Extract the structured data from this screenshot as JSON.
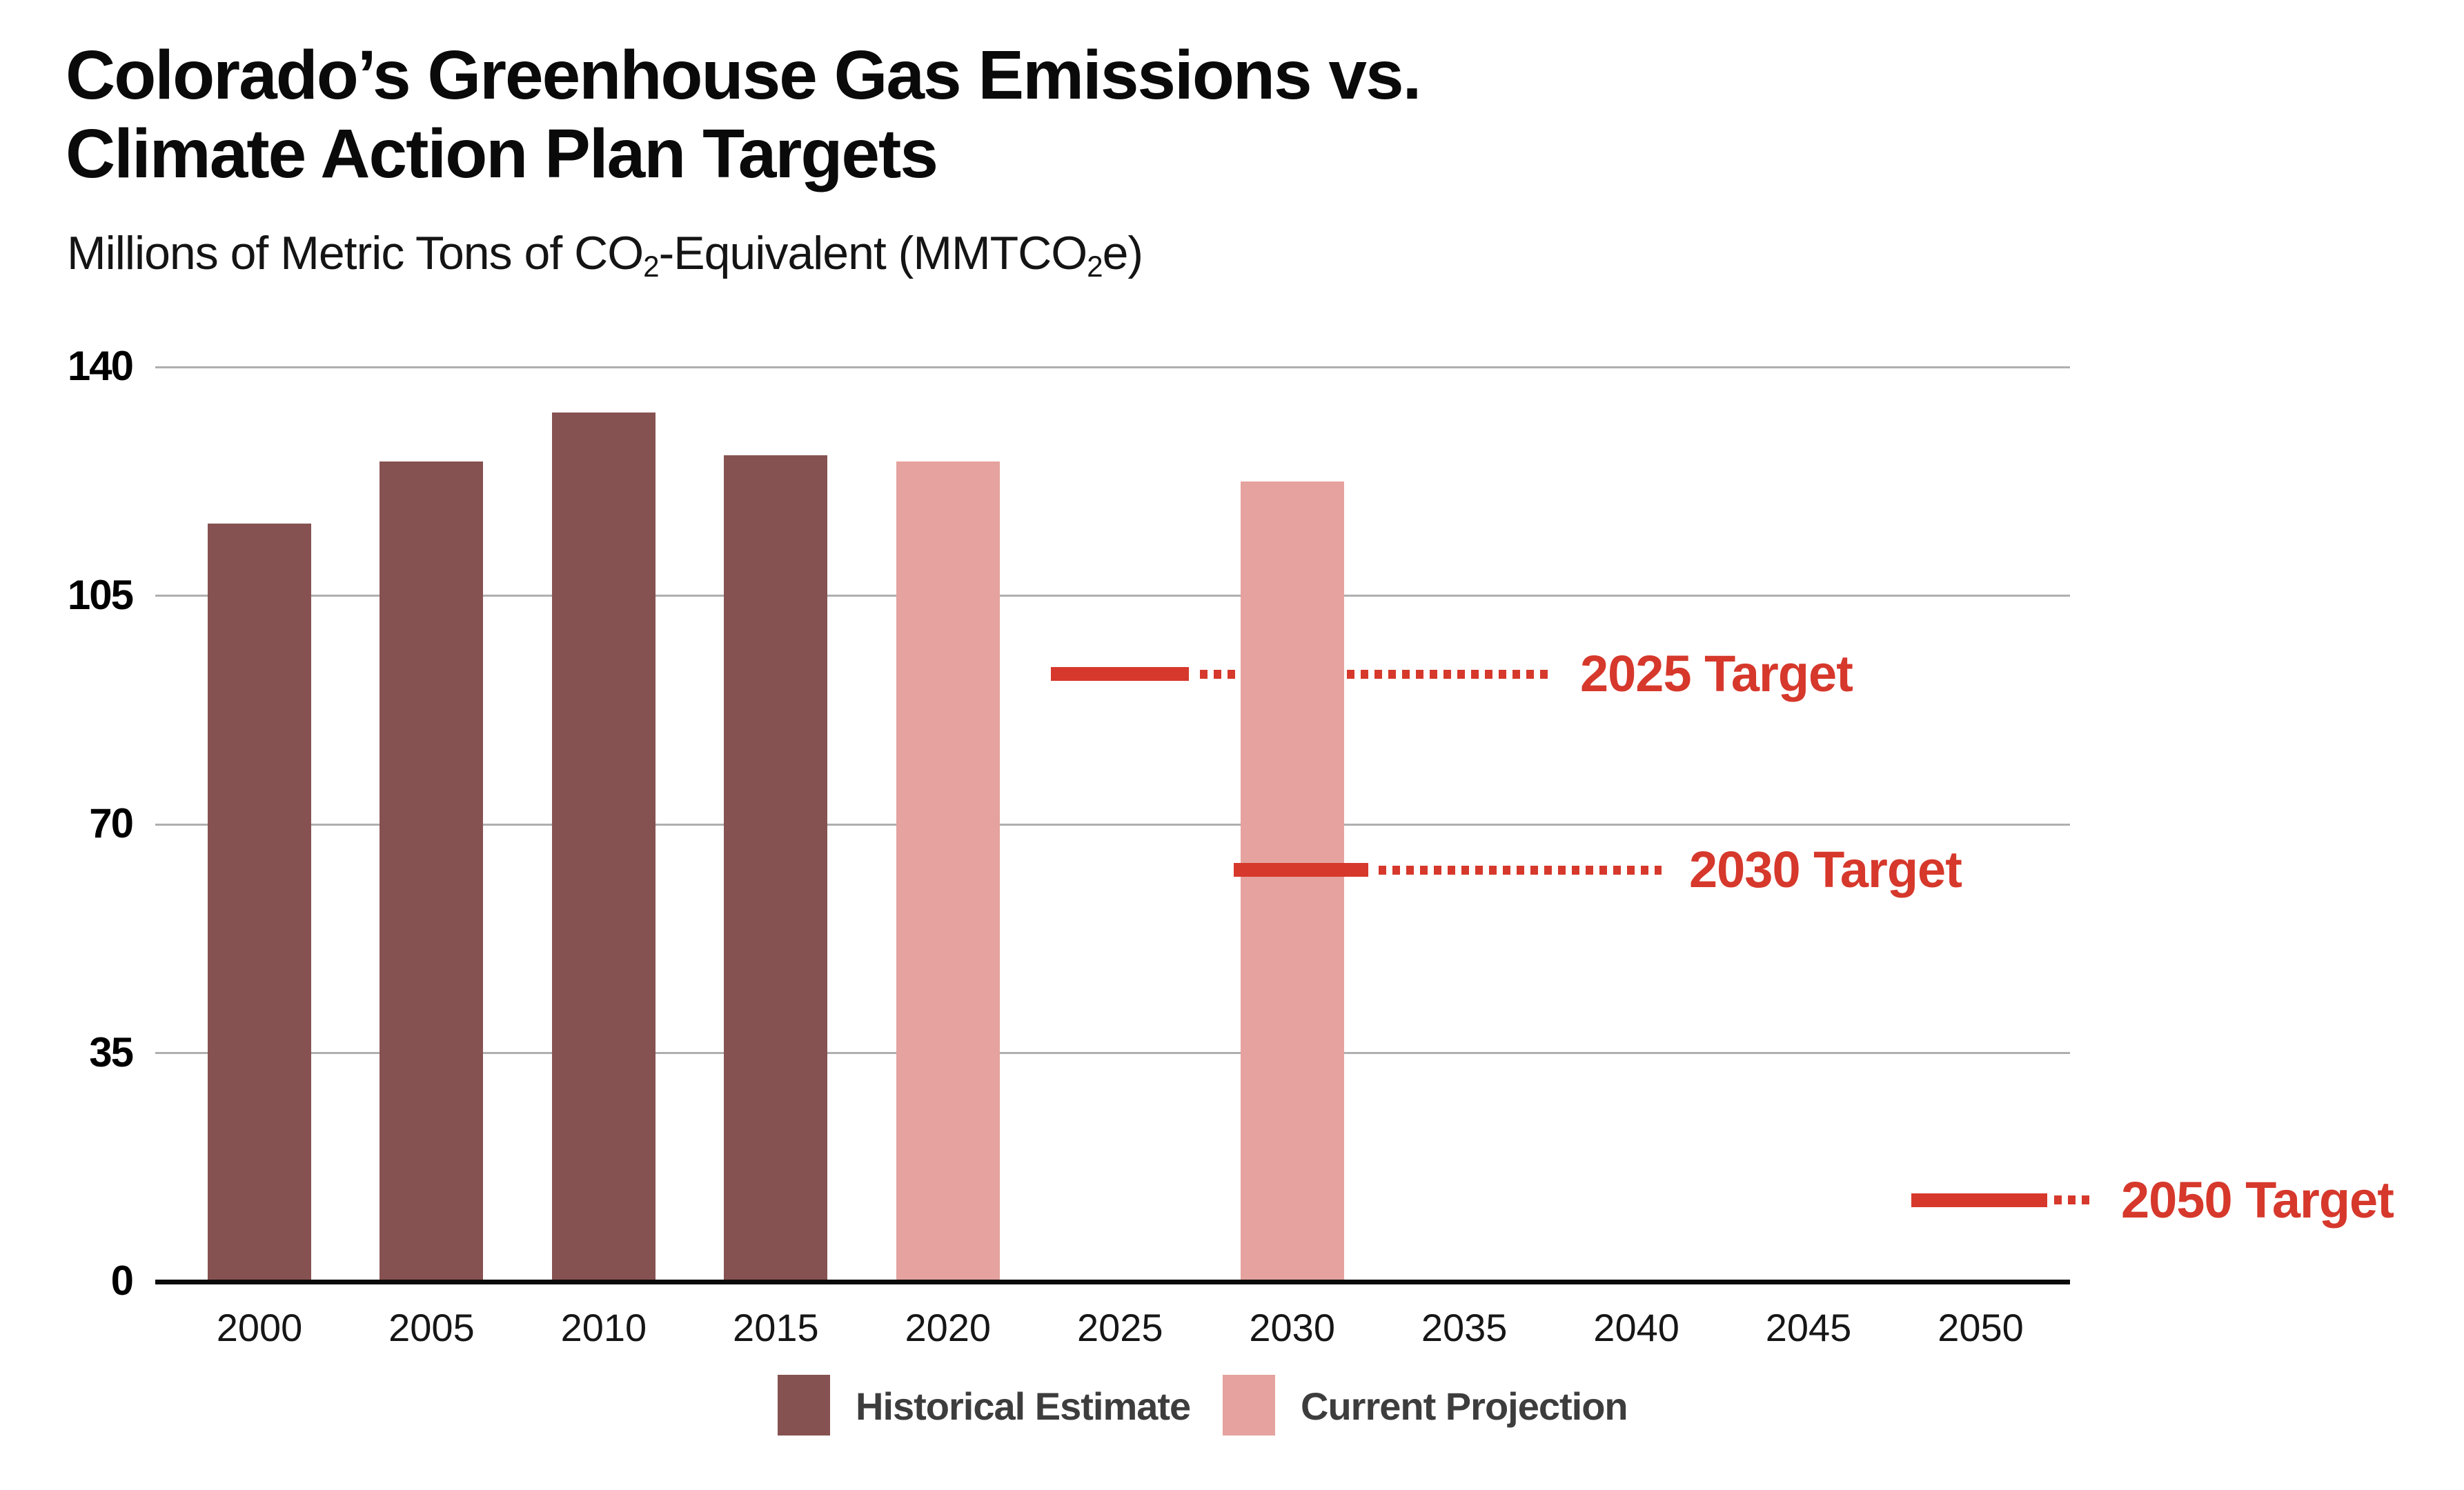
{
  "title": {
    "line1": "Colorado’s Greenhouse Gas Emissions vs.",
    "line2": "Climate Action Plan Targets"
  },
  "subtitle": {
    "pre": "Millions of Metric Tons of CO",
    "sub1": "2",
    "mid": "-Equivalent (MMTCO",
    "sub2": "2",
    "post": "e)"
  },
  "colors": {
    "historical": "#865251",
    "projection": "#e5a29e",
    "target_red": "#d6382c",
    "gridline": "#afafaf",
    "axis": "#0a0a0a",
    "title_text": "#0a0a0a",
    "legend_text": "#3d3d3d"
  },
  "legend": {
    "items": [
      {
        "label": "Historical Estimate",
        "swatch": "historical"
      },
      {
        "label": "Current Projection",
        "swatch": "projection"
      }
    ]
  },
  "chart_data": {
    "type": "bar",
    "title": "Colorado's Greenhouse Gas Emissions vs. Climate Action Plan Targets",
    "ylabel": "Millions of Metric Tons of CO2-Equivalent (MMTCO2e)",
    "xlabel": "",
    "ylim": [
      0,
      140
    ],
    "yticks": [
      0,
      35,
      70,
      105,
      140
    ],
    "grid": true,
    "legend_position": "bottom",
    "categories": [
      "2000",
      "2005",
      "2010",
      "2015",
      "2020",
      "2025",
      "2030",
      "2035",
      "2040",
      "2045",
      "2050"
    ],
    "series": [
      {
        "name": "Historical Estimate",
        "color": "#865251",
        "values": {
          "2000": 116,
          "2005": 125.5,
          "2010": 133,
          "2015": 126.5
        }
      },
      {
        "name": "Current Projection",
        "color": "#e5a29e",
        "values": {
          "2020": 125.5,
          "2030": 122.5
        }
      }
    ],
    "targets": [
      {
        "label": "2025 Target",
        "value": 93
      },
      {
        "label": "2030 Target",
        "value": 63
      },
      {
        "label": "2050 Target",
        "value": 12.5
      }
    ]
  }
}
